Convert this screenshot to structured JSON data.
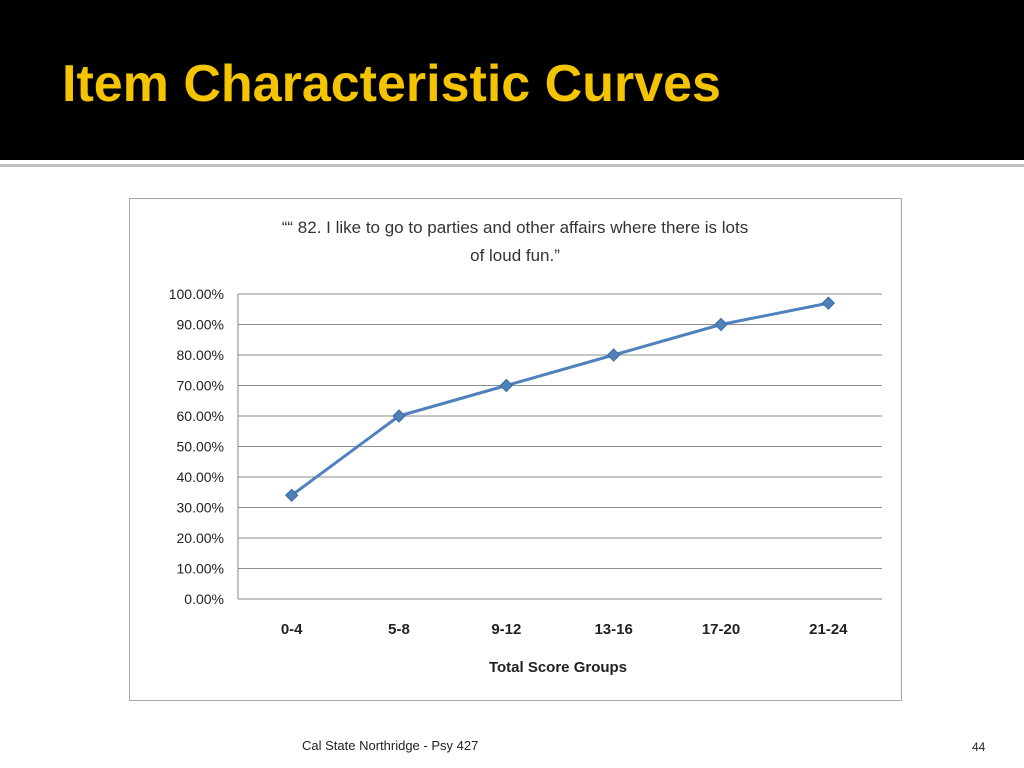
{
  "slide": {
    "title": "Item Characteristic Curves",
    "footer": "Cal State Northridge - Psy 427",
    "page_number": "44",
    "colors": {
      "title": "#f5c400",
      "background_band": "#000000",
      "series": "#4f81bd"
    }
  },
  "chart_data": {
    "type": "line",
    "title_lines": [
      "““ 82. I like to go to parties and other affairs where there is lots",
      "of loud fun.”"
    ],
    "xlabel": "Total Score Groups",
    "ylabel": "",
    "categories": [
      "0-4",
      "5-8",
      "9-12",
      "13-16",
      "17-20",
      "21-24"
    ],
    "series": [
      {
        "values": [
          0.34,
          0.6,
          0.7,
          0.8,
          0.9,
          0.97
        ],
        "marker": "diamond"
      }
    ],
    "ylim": [
      0,
      1
    ],
    "yticks": [
      "0.00%",
      "10.00%",
      "20.00%",
      "30.00%",
      "40.00%",
      "50.00%",
      "60.00%",
      "70.00%",
      "80.00%",
      "90.00%",
      "100.00%"
    ],
    "grid": true,
    "legend": "none"
  }
}
